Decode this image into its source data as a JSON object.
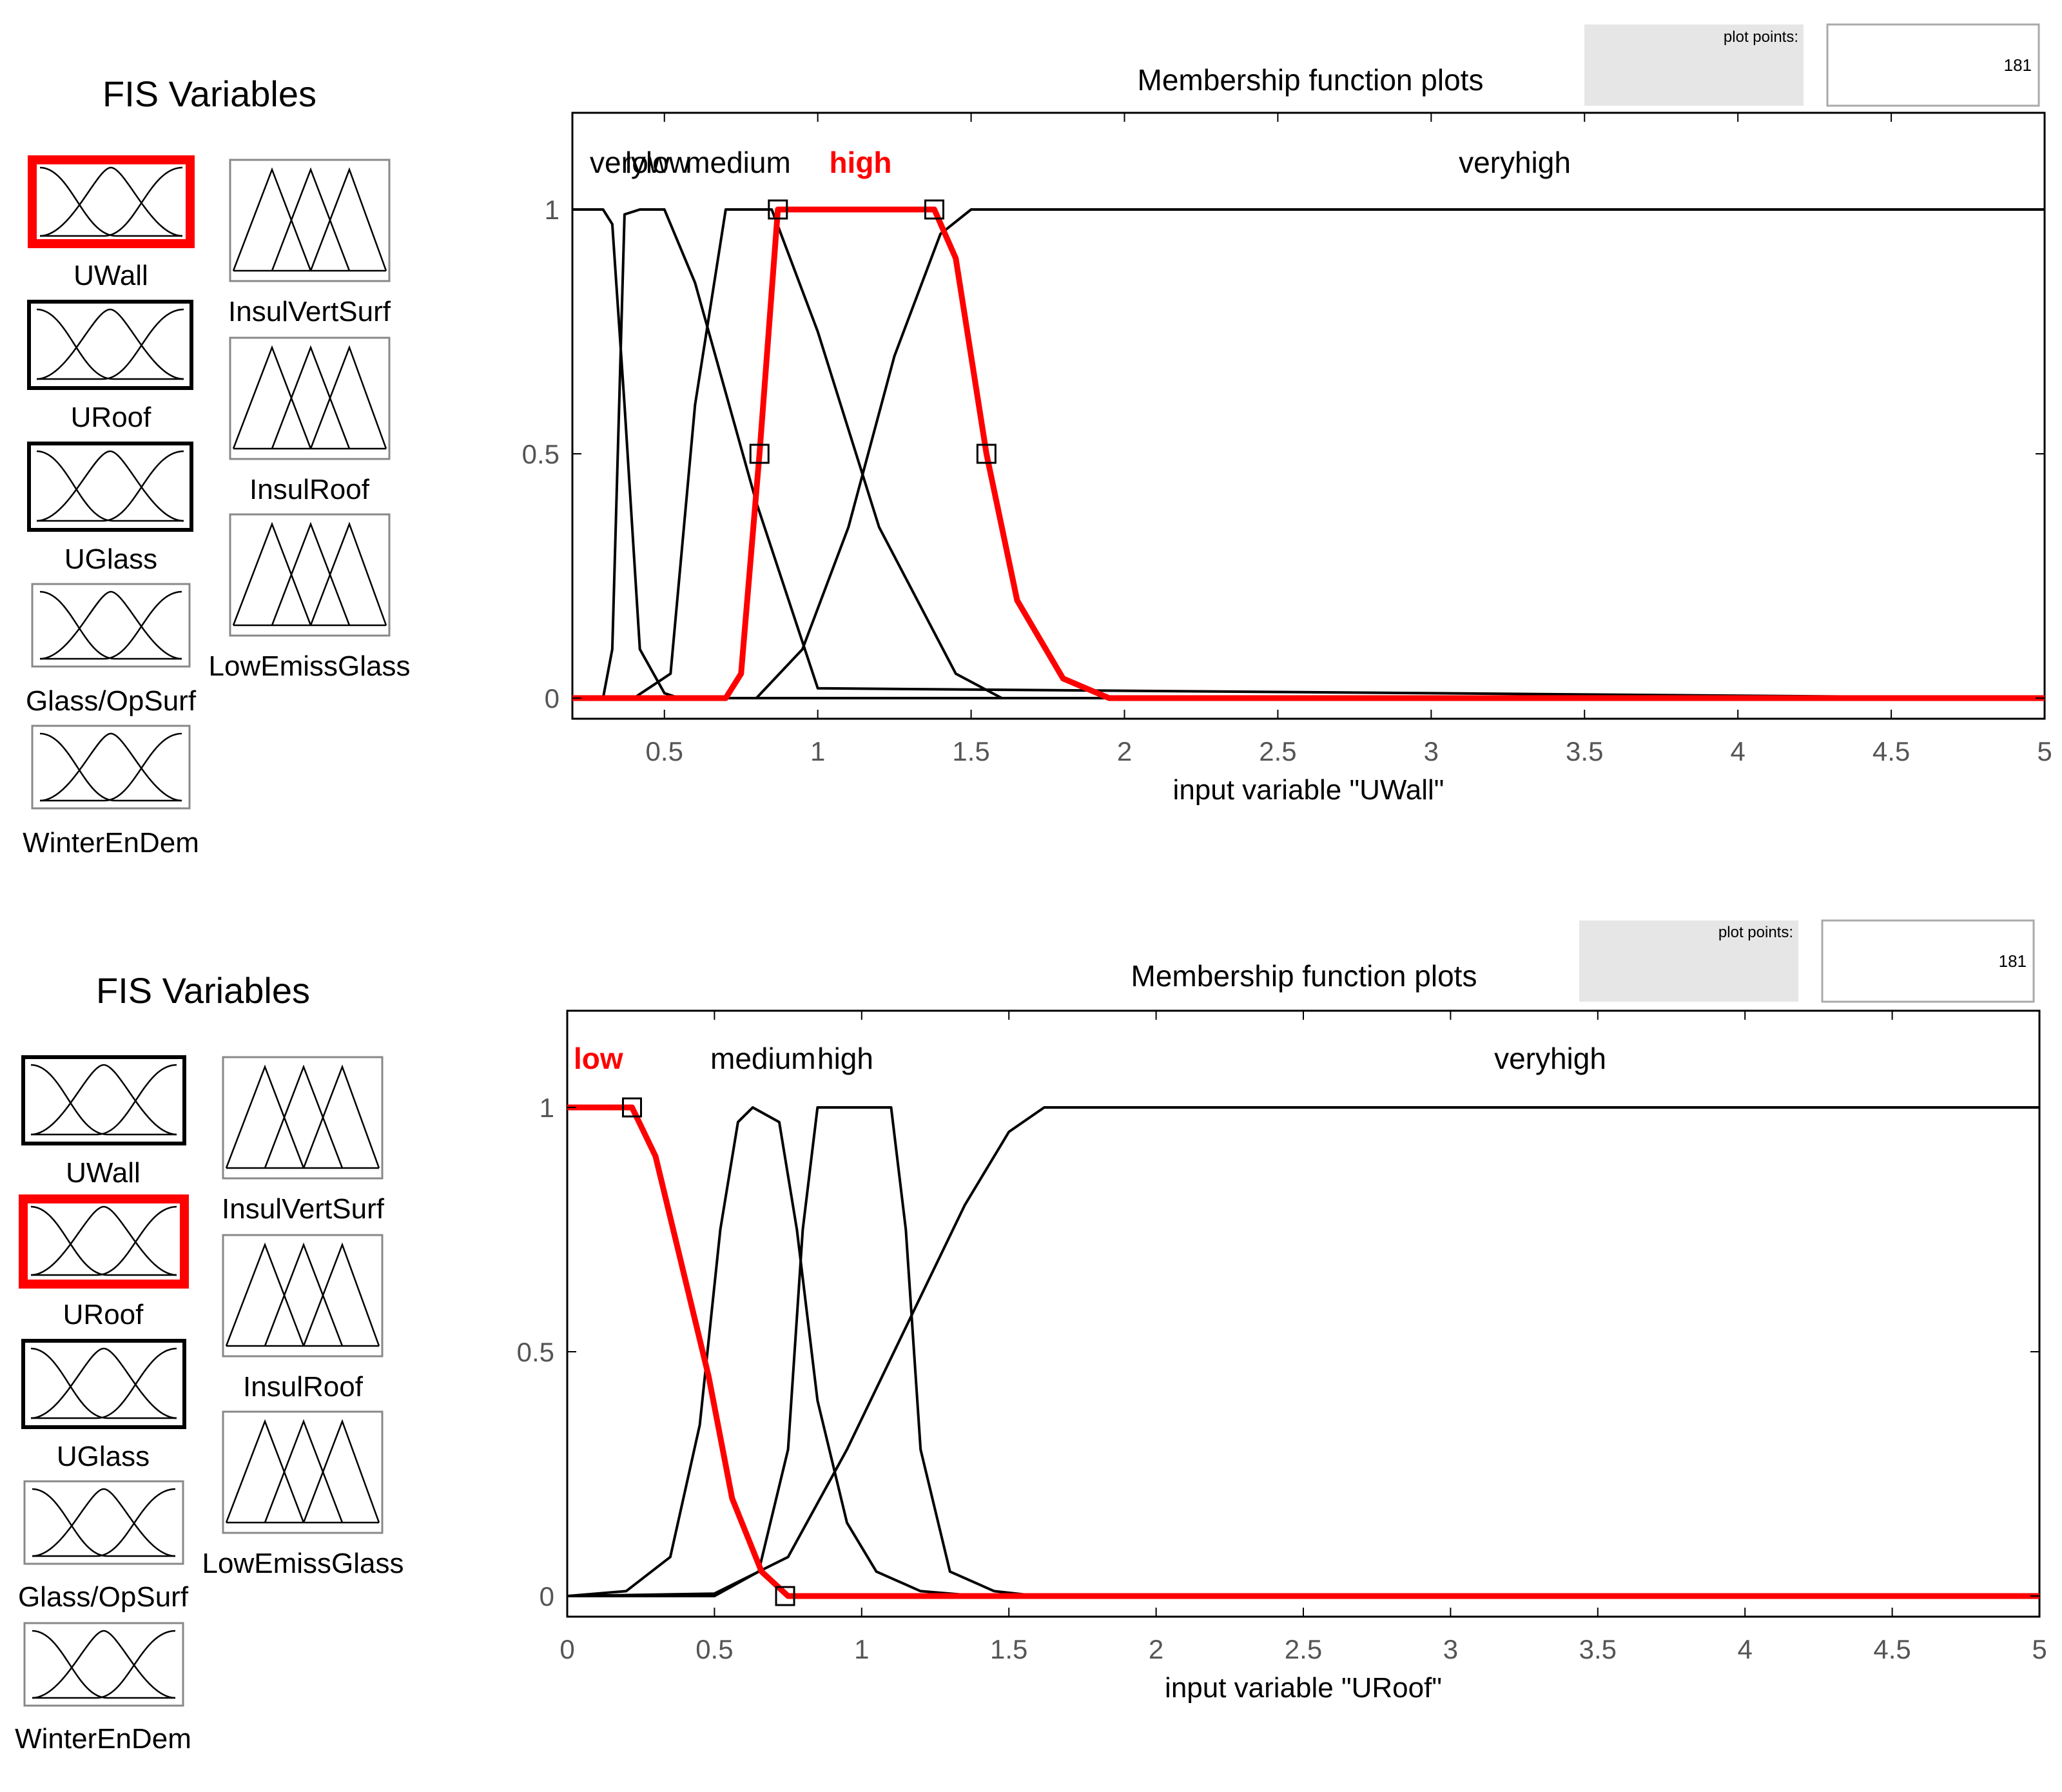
{
  "colors": {
    "selected": "#ff0000",
    "normal": "#000000",
    "tick": "#555555",
    "plot_points_bg": "#e6e6e6"
  },
  "icons": {
    "input_variable": "gaussian-mf-icon",
    "output_variable": "triangular-mf-icon"
  },
  "panels": [
    {
      "fis_title": "FIS Variables",
      "inputs": [
        {
          "label": "UWall",
          "selected": true
        },
        {
          "label": "URoof",
          "selected": false
        },
        {
          "label": "UGlass",
          "selected": false
        },
        {
          "label": "Glass/OpSurf",
          "selected": false
        },
        {
          "label": "WinterEnDem",
          "selected": false
        }
      ],
      "outputs": [
        {
          "label": "InsulVertSurf"
        },
        {
          "label": "InsulRoof"
        },
        {
          "label": "LowEmissGlass"
        }
      ],
      "plot_points_label": "plot points:",
      "plot_points_value": "181",
      "plot_title": "Membership function plots",
      "mf_labels": [
        {
          "text": "verylow",
          "selected": false
        },
        {
          "text": "low",
          "selected": false
        },
        {
          "text": "medium",
          "selected": false
        },
        {
          "text": "high",
          "selected": true
        },
        {
          "text": "veryhigh",
          "selected": false
        }
      ],
      "chart_data": {
        "type": "line",
        "xlabel": "input variable \"UWall\"",
        "xlim": [
          0.2,
          5
        ],
        "ylim": [
          0,
          1
        ],
        "xticks": [
          "0.5",
          "1",
          "1.5",
          "2",
          "2.5",
          "3",
          "3.5",
          "4",
          "4.5",
          "5"
        ],
        "xtick_values": [
          0.5,
          1,
          1.5,
          2,
          2.5,
          3,
          3.5,
          4,
          4.5,
          5
        ],
        "yticks": [
          "0",
          "0.5",
          "1"
        ],
        "ytick_values": [
          0,
          0.5,
          1
        ],
        "series": [
          {
            "name": "verylow",
            "selected": false,
            "x": [
              0.2,
              0.3,
              0.33,
              0.37,
              0.42,
              0.5,
              0.55,
              5
            ],
            "y": [
              1,
              1,
              0.97,
              0.6,
              0.1,
              0.01,
              0,
              0
            ]
          },
          {
            "name": "low",
            "selected": false,
            "x": [
              0.2,
              0.3,
              0.33,
              0.37,
              0.42,
              0.5,
              0.6,
              0.8,
              1.0,
              5
            ],
            "y": [
              0,
              0,
              0.1,
              0.99,
              1,
              1,
              0.85,
              0.4,
              0.02,
              0
            ]
          },
          {
            "name": "medium",
            "selected": false,
            "x": [
              0.2,
              0.4,
              0.52,
              0.6,
              0.7,
              0.85,
              1.0,
              1.2,
              1.45,
              1.6,
              5
            ],
            "y": [
              0,
              0,
              0.05,
              0.6,
              1,
              1,
              0.75,
              0.35,
              0.05,
              0,
              0
            ]
          },
          {
            "name": "high",
            "selected": true,
            "x": [
              0.2,
              0.7,
              0.75,
              0.81,
              0.87,
              1.38,
              1.45,
              1.55,
              1.65,
              1.8,
              1.95,
              5
            ],
            "y": [
              0,
              0,
              0.05,
              0.5,
              1,
              1,
              0.9,
              0.5,
              0.2,
              0.04,
              0,
              0
            ]
          },
          {
            "name": "veryhigh",
            "selected": false,
            "x": [
              0.2,
              0.8,
              0.95,
              1.1,
              1.25,
              1.4,
              1.5,
              5
            ],
            "y": [
              0,
              0,
              0.1,
              0.35,
              0.7,
              0.95,
              1,
              1
            ]
          }
        ],
        "markers": [
          {
            "x": 0.87,
            "y": 1
          },
          {
            "x": 1.38,
            "y": 1
          },
          {
            "x": 0.81,
            "y": 0.5
          },
          {
            "x": 1.55,
            "y": 0.5
          }
        ]
      }
    },
    {
      "fis_title": "FIS Variables",
      "inputs": [
        {
          "label": "UWall",
          "selected": false
        },
        {
          "label": "URoof",
          "selected": true
        },
        {
          "label": "UGlass",
          "selected": false
        },
        {
          "label": "Glass/OpSurf",
          "selected": false
        },
        {
          "label": "WinterEnDem",
          "selected": false
        }
      ],
      "outputs": [
        {
          "label": "InsulVertSurf"
        },
        {
          "label": "InsulRoof"
        },
        {
          "label": "LowEmissGlass"
        }
      ],
      "plot_points_label": "plot points:",
      "plot_points_value": "181",
      "plot_title": "Membership function plots",
      "mf_labels": [
        {
          "text": "low",
          "selected": true
        },
        {
          "text": "medium",
          "selected": false
        },
        {
          "text": "high",
          "selected": false
        },
        {
          "text": "veryhigh",
          "selected": false
        }
      ],
      "chart_data": {
        "type": "line",
        "xlabel": "input variable \"URoof\"",
        "xlim": [
          0,
          5
        ],
        "ylim": [
          0,
          1
        ],
        "xticks": [
          "0",
          "0.5",
          "1",
          "1.5",
          "2",
          "2.5",
          "3",
          "3.5",
          "4",
          "4.5",
          "5"
        ],
        "xtick_values": [
          0,
          0.5,
          1,
          1.5,
          2,
          2.5,
          3,
          3.5,
          4,
          4.5,
          5
        ],
        "yticks": [
          "0",
          "0.5",
          "1"
        ],
        "ytick_values": [
          0,
          0.5,
          1
        ],
        "series": [
          {
            "name": "low",
            "selected": true,
            "x": [
              0,
              0.22,
              0.3,
              0.4,
              0.48,
              0.56,
              0.66,
              0.75,
              5
            ],
            "y": [
              1,
              1,
              0.9,
              0.65,
              0.45,
              0.2,
              0.05,
              0,
              0
            ]
          },
          {
            "name": "medium",
            "selected": false,
            "x": [
              0,
              0.2,
              0.35,
              0.45,
              0.52,
              0.58,
              0.63,
              0.72,
              0.78,
              0.85,
              0.95,
              1.05,
              1.2,
              1.4,
              5
            ],
            "y": [
              0,
              0.01,
              0.08,
              0.35,
              0.75,
              0.97,
              1,
              0.97,
              0.75,
              0.4,
              0.15,
              0.05,
              0.01,
              0,
              0
            ]
          },
          {
            "name": "high",
            "selected": false,
            "x": [
              0,
              0.5,
              0.65,
              0.75,
              0.8,
              0.85,
              1.1,
              1.15,
              1.2,
              1.3,
              1.45,
              1.6,
              5
            ],
            "y": [
              0,
              0,
              0.05,
              0.3,
              0.75,
              1,
              1,
              0.75,
              0.3,
              0.05,
              0.01,
              0,
              0
            ]
          },
          {
            "name": "veryhigh",
            "selected": false,
            "x": [
              0,
              0.5,
              0.75,
              0.95,
              1.15,
              1.35,
              1.5,
              1.62,
              5
            ],
            "y": [
              0,
              0.005,
              0.08,
              0.3,
              0.55,
              0.8,
              0.95,
              1,
              1
            ]
          }
        ],
        "markers": [
          {
            "x": 0.22,
            "y": 1
          },
          {
            "x": 0.74,
            "y": 0
          }
        ]
      }
    }
  ]
}
